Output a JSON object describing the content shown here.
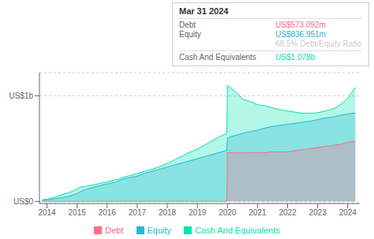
{
  "chart_data": {
    "type": "area",
    "x": [
      2013.83,
      2014.0,
      2014.25,
      2014.5,
      2014.75,
      2015.0,
      2015.1,
      2015.25,
      2015.5,
      2015.75,
      2016.0,
      2016.25,
      2016.4,
      2016.5,
      2016.75,
      2017.0,
      2017.25,
      2017.5,
      2017.75,
      2018.0,
      2018.25,
      2018.5,
      2018.75,
      2019.0,
      2019.25,
      2019.5,
      2019.75,
      2019.98,
      2020.0,
      2020.25,
      2020.5,
      2020.75,
      2021.0,
      2021.25,
      2021.5,
      2021.75,
      2022.0,
      2022.25,
      2022.5,
      2022.75,
      2023.0,
      2023.25,
      2023.5,
      2023.75,
      2024.0,
      2024.25
    ],
    "xlim": [
      2013.75,
      2024.4
    ],
    "xticks": [
      2014,
      2015,
      2016,
      2017,
      2018,
      2019,
      2020,
      2021,
      2022,
      2023,
      2024
    ],
    "ylim": [
      -0.02,
      1.22
    ],
    "yticks": [
      {
        "value": 0.0,
        "label": "US$0"
      },
      {
        "value": 1.0,
        "label": "US$1b"
      }
    ],
    "grid": "y",
    "legend": "bottom",
    "series": [
      {
        "name": "Debt",
        "color": "#ff6b8a",
        "values": [
          0.0,
          0.0,
          0.0,
          0.0,
          0.0,
          0.0,
          0.0,
          0.0,
          0.0,
          0.0,
          0.0,
          0.0,
          0.0,
          0.0,
          0.0,
          0.0,
          0.0,
          0.0,
          0.0,
          0.0,
          0.0,
          0.0,
          0.0,
          0.0,
          0.0,
          0.0,
          0.0,
          0.0,
          0.46,
          0.46,
          0.46,
          0.46,
          0.46,
          0.46,
          0.47,
          0.47,
          0.47,
          0.48,
          0.49,
          0.5,
          0.51,
          0.52,
          0.53,
          0.54,
          0.56,
          0.573
        ]
      },
      {
        "name": "Equity",
        "color": "#29b6d4",
        "values": [
          0.01,
          0.015,
          0.025,
          0.035,
          0.05,
          0.075,
          0.09,
          0.11,
          0.13,
          0.15,
          0.165,
          0.18,
          0.195,
          0.21,
          0.225,
          0.24,
          0.265,
          0.285,
          0.305,
          0.325,
          0.345,
          0.365,
          0.385,
          0.405,
          0.425,
          0.445,
          0.465,
          0.485,
          0.6,
          0.625,
          0.645,
          0.66,
          0.675,
          0.695,
          0.71,
          0.72,
          0.73,
          0.74,
          0.75,
          0.76,
          0.775,
          0.79,
          0.8,
          0.815,
          0.83,
          0.836
        ]
      },
      {
        "name": "Cash And Equivalents",
        "color": "#00e5b0",
        "values": [
          0.015,
          0.02,
          0.04,
          0.065,
          0.085,
          0.115,
          0.135,
          0.14,
          0.155,
          0.17,
          0.185,
          0.205,
          0.21,
          0.225,
          0.245,
          0.265,
          0.285,
          0.305,
          0.33,
          0.36,
          0.395,
          0.43,
          0.465,
          0.495,
          0.535,
          0.575,
          0.615,
          0.645,
          1.1,
          1.045,
          0.97,
          0.945,
          0.915,
          0.905,
          0.885,
          0.87,
          0.855,
          0.845,
          0.835,
          0.835,
          0.84,
          0.855,
          0.875,
          0.915,
          0.975,
          1.078
        ]
      }
    ],
    "annotation": {
      "title": "Mar 31 2024",
      "items": [
        {
          "label": "Debt",
          "value": "US$573.092m",
          "color": "#ff6b8a"
        },
        {
          "label": "Equity",
          "value": "US$836.951m",
          "color": "#29b6d4"
        },
        {
          "value": "68.5% Debt/Equity Ratio",
          "color": "#cccccc"
        },
        {
          "label": "Cash And Equivalents",
          "value": "US$1.078b",
          "color": "#00e5b0"
        }
      ]
    }
  }
}
